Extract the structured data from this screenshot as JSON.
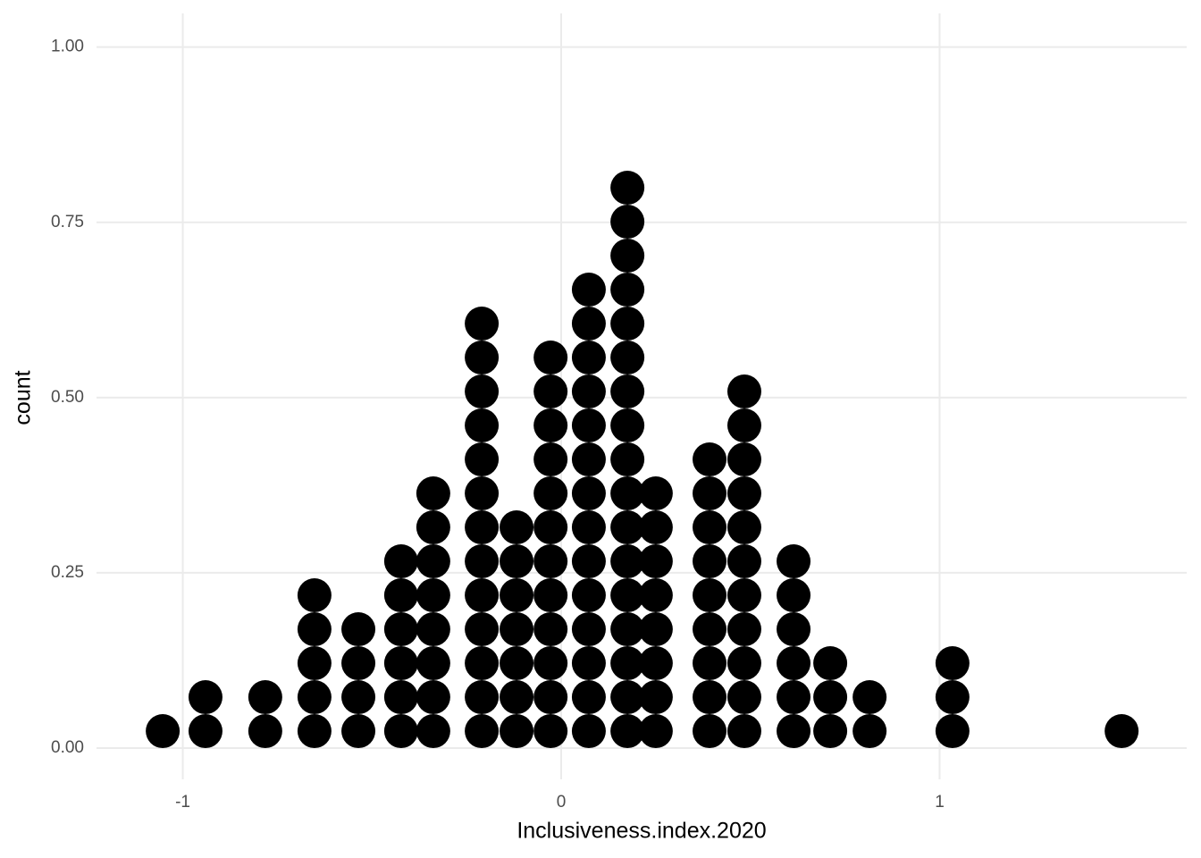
{
  "chart_data": {
    "type": "dotplot",
    "x_label": "Inclusiveness.index.2020",
    "y_label": "count",
    "x": [
      -1.053,
      -0.94,
      -0.782,
      -0.652,
      -0.536,
      -0.423,
      -0.338,
      -0.21,
      -0.118,
      -0.028,
      0.073,
      0.175,
      0.25,
      0.392,
      0.484,
      0.614,
      0.711,
      0.815,
      1.034,
      1.481
    ],
    "counts": [
      1,
      2,
      2,
      5,
      4,
      6,
      8,
      13,
      7,
      12,
      14,
      17,
      8,
      9,
      11,
      6,
      3,
      2,
      3,
      1
    ],
    "color": "#000000",
    "xlim": [
      -1.228,
      1.653
    ],
    "xticks": [
      -1,
      0,
      1
    ],
    "ylim": [
      -0.0446,
      1.048
    ],
    "yticks": [
      {
        "value": 0,
        "label": "0.00"
      },
      {
        "value": 0.25,
        "label": "0.25"
      },
      {
        "value": 0.5,
        "label": "0.50"
      },
      {
        "value": 0.75,
        "label": "0.75"
      },
      {
        "value": 1,
        "label": "1.00"
      }
    ],
    "grid": true
  }
}
